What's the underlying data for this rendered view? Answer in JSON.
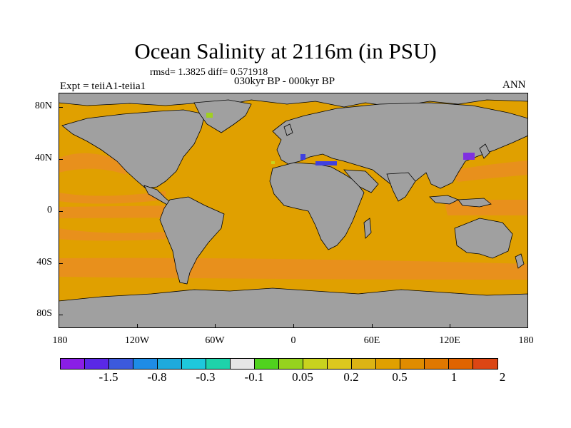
{
  "figure": {
    "title": "Ocean Salinity at 2116m (in PSU)",
    "stats_line": "rmsd= 1.3825 diff= 0.571918",
    "period": "030kyr BP - 000kyr BP",
    "experiment": "Expt = teiiA1-teiia1",
    "season": "ANN"
  },
  "map": {
    "projection": "cylindrical equidistant",
    "lat_labels": [
      "80N",
      "40N",
      "0",
      "40S",
      "80S"
    ],
    "lon_labels": [
      "180",
      "120W",
      "60W",
      "0",
      "60E",
      "120E",
      "180"
    ],
    "colors": {
      "ocean_main": "#e0a000",
      "ocean_high": "#e8901c",
      "land_mask": "#a0a0a0",
      "coastline": "#000000",
      "anomaly_blue": "#4040e0",
      "anomaly_purple": "#8030e0",
      "anomaly_green": "#a0d020"
    }
  },
  "colorbar": {
    "labels": [
      "-1.5",
      "-0.8",
      "-0.3",
      "-0.1",
      "0.05",
      "0.2",
      "0.5",
      "1",
      "2"
    ],
    "colors": [
      "#8a1ee6",
      "#5a28e6",
      "#3c5adc",
      "#1e8ce6",
      "#1eaadc",
      "#1ec8dc",
      "#1ed2aa",
      "#e6e6e6",
      "#50d21e",
      "#96d21e",
      "#c8d21e",
      "#dcc81e",
      "#dcb414",
      "#e0a000",
      "#e08c00",
      "#e07800",
      "#e06400",
      "#dc4614"
    ]
  }
}
